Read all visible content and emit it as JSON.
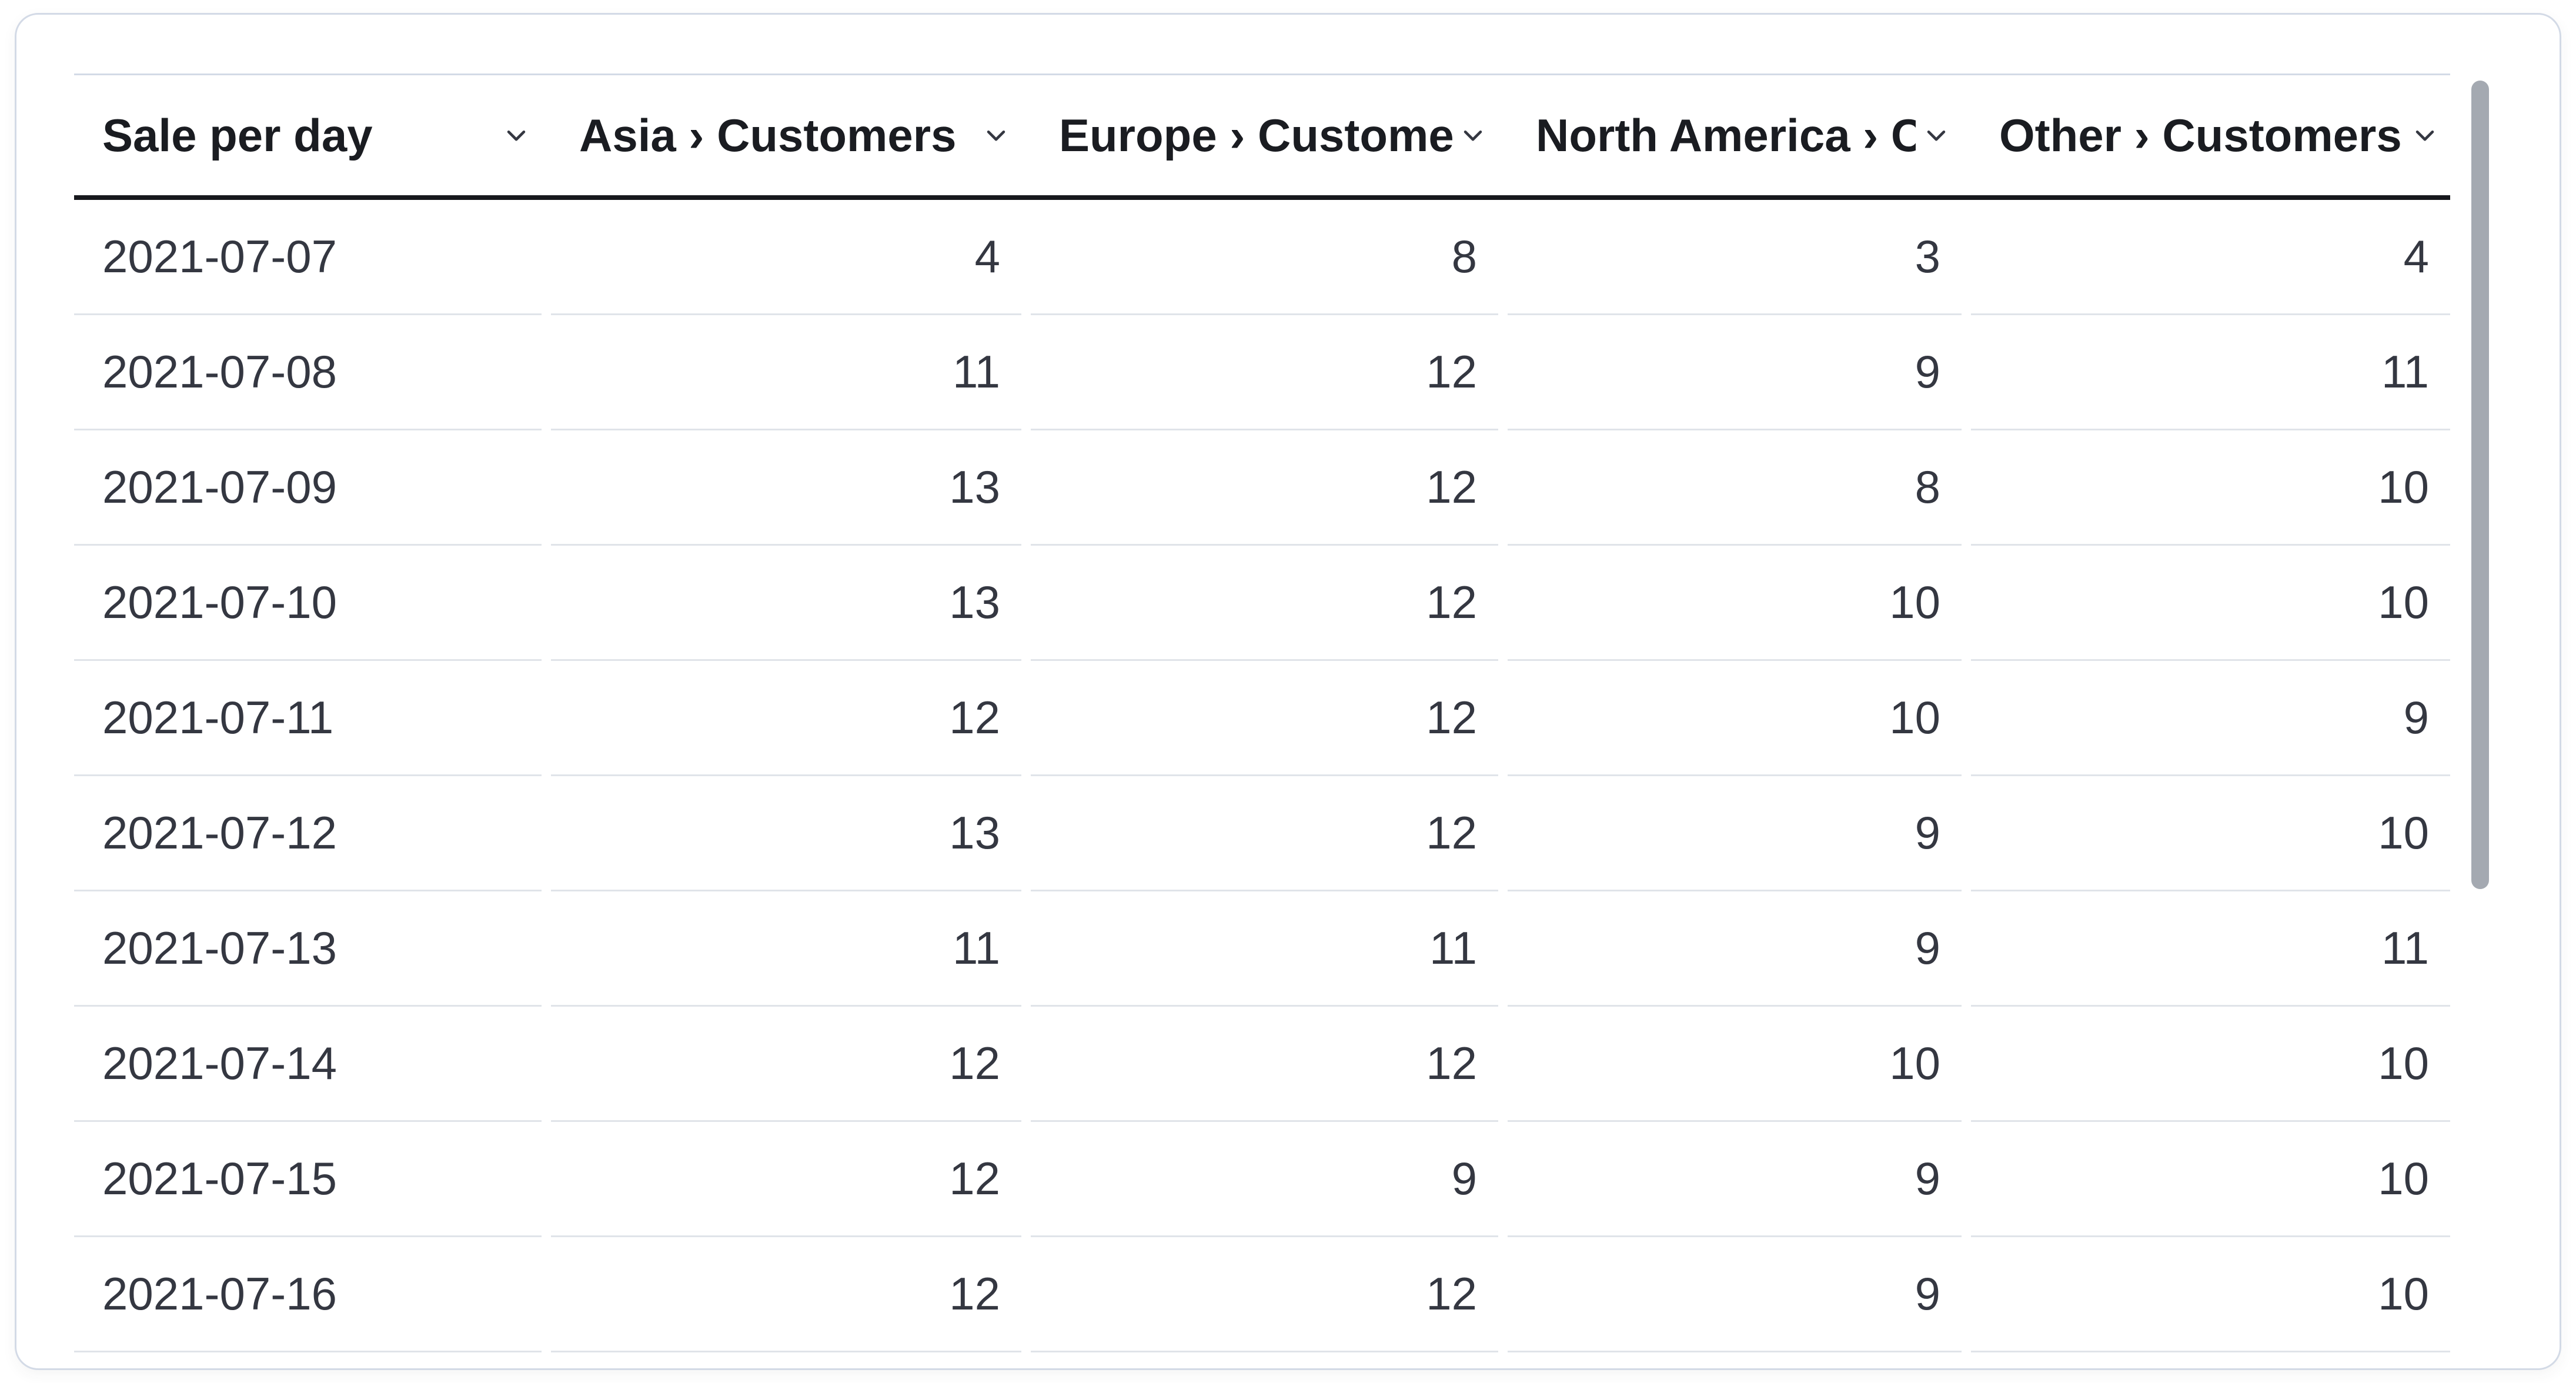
{
  "colors": {
    "background": "#ffffff",
    "card_border": "#d3dae6",
    "header_rule_top": "#d3dae6",
    "header_rule_bottom": "#17181d",
    "row_divider": "#e0e4e9",
    "header_text": "#1a1c21",
    "body_text": "#343741",
    "scrollbar_thumb": "#a4a9b1"
  },
  "icons": {
    "column_header_control": "chevron-down"
  },
  "table": {
    "columns": [
      {
        "label": "Sale per day",
        "align": "left"
      },
      {
        "label": "Asia › Customers",
        "align": "right"
      },
      {
        "label": "Europe › Customers",
        "align": "right"
      },
      {
        "label": "North America › Customers",
        "align": "right"
      },
      {
        "label": "Other › Customers",
        "align": "right"
      }
    ],
    "rows": [
      [
        "2021-07-07",
        "4",
        "8",
        "3",
        "4"
      ],
      [
        "2021-07-08",
        "11",
        "12",
        "9",
        "11"
      ],
      [
        "2021-07-09",
        "13",
        "12",
        "8",
        "10"
      ],
      [
        "2021-07-10",
        "13",
        "12",
        "10",
        "10"
      ],
      [
        "2021-07-11",
        "12",
        "12",
        "10",
        "9"
      ],
      [
        "2021-07-12",
        "13",
        "12",
        "9",
        "10"
      ],
      [
        "2021-07-13",
        "11",
        "11",
        "9",
        "11"
      ],
      [
        "2021-07-14",
        "12",
        "12",
        "10",
        "10"
      ],
      [
        "2021-07-15",
        "12",
        "9",
        "9",
        "10"
      ],
      [
        "2021-07-16",
        "12",
        "12",
        "9",
        "10"
      ]
    ]
  },
  "chart_data": {
    "type": "table",
    "title": "Sale per day",
    "categories": [
      "2021-07-07",
      "2021-07-08",
      "2021-07-09",
      "2021-07-10",
      "2021-07-11",
      "2021-07-12",
      "2021-07-13",
      "2021-07-14",
      "2021-07-15",
      "2021-07-16"
    ],
    "series": [
      {
        "name": "Asia › Customers",
        "values": [
          4,
          11,
          13,
          13,
          12,
          13,
          11,
          12,
          12,
          12
        ]
      },
      {
        "name": "Europe › Customers",
        "values": [
          8,
          12,
          12,
          12,
          12,
          12,
          11,
          12,
          9,
          12
        ]
      },
      {
        "name": "North America › Customers",
        "values": [
          3,
          9,
          8,
          10,
          10,
          9,
          9,
          10,
          9,
          9
        ]
      },
      {
        "name": "Other › Customers",
        "values": [
          4,
          11,
          10,
          10,
          9,
          10,
          11,
          10,
          10,
          10
        ]
      }
    ]
  },
  "scrollbar": {
    "visible": true
  }
}
